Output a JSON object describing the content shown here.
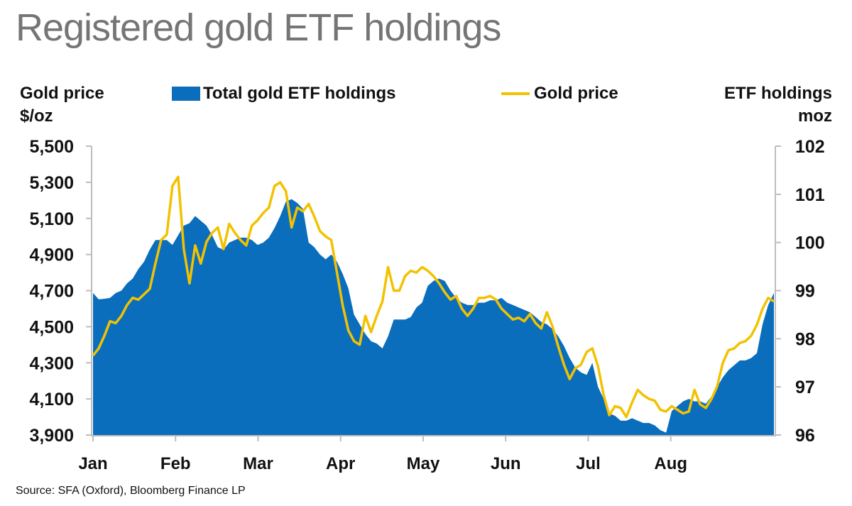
{
  "title": "Registered gold ETF holdings",
  "source": "Source: SFA (Oxford), Bloomberg Finance LP",
  "colors": {
    "holdings": "#0a6ebd",
    "price": "#f2c200",
    "axis": "#bdbdbd"
  },
  "chart_data": {
    "type": "area",
    "title": "Registered gold ETF holdings",
    "left_axis": {
      "label_line1": "Gold price",
      "label_line2": "$/oz",
      "range": [
        3900,
        5500
      ],
      "ticks": [
        "5,500",
        "5,300",
        "5,100",
        "4,900",
        "4,700",
        "4,500",
        "4,300",
        "4,100",
        "3,900"
      ]
    },
    "right_axis": {
      "label_line1": "ETF holdings",
      "label_line2": "moz",
      "range": [
        96,
        102
      ],
      "ticks": [
        "102",
        "101",
        "100",
        "99",
        "98",
        "97",
        "96"
      ]
    },
    "x_axis": {
      "ticks": [
        "Jan",
        "Feb",
        "Mar",
        "Apr",
        "May",
        "Jun",
        "Jul",
        "Aug"
      ]
    },
    "legend": {
      "holdings": "Total gold ETF holdings",
      "price": "Gold price",
      "placement": "top"
    },
    "series": [
      {
        "name": "Total gold ETF holdings",
        "type": "area",
        "axis": "right",
        "points": [
          [
            0,
            98.95
          ],
          [
            1,
            98.82
          ],
          [
            2,
            98.83
          ],
          [
            3,
            98.85
          ],
          [
            4,
            98.95
          ],
          [
            5,
            99.0
          ],
          [
            6,
            99.15
          ],
          [
            7,
            99.25
          ],
          [
            8,
            99.45
          ],
          [
            9,
            99.6
          ],
          [
            10,
            99.85
          ],
          [
            11,
            100.05
          ],
          [
            12,
            100.05
          ],
          [
            13,
            100.05
          ],
          [
            14,
            99.95
          ],
          [
            15,
            100.15
          ],
          [
            16,
            100.35
          ],
          [
            17,
            100.4
          ],
          [
            18,
            100.55
          ],
          [
            19,
            100.45
          ],
          [
            20,
            100.35
          ],
          [
            21,
            100.15
          ],
          [
            22,
            99.9
          ],
          [
            23,
            99.85
          ],
          [
            24,
            100.0
          ],
          [
            25,
            100.05
          ],
          [
            26,
            100.1
          ],
          [
            27,
            100.1
          ],
          [
            28,
            100.05
          ],
          [
            29,
            99.95
          ],
          [
            30,
            100.0
          ],
          [
            31,
            100.1
          ],
          [
            32,
            100.3
          ],
          [
            33,
            100.55
          ],
          [
            34,
            100.85
          ],
          [
            35,
            100.9
          ],
          [
            36,
            100.82
          ],
          [
            37,
            100.7
          ],
          [
            38,
            100.0
          ],
          [
            39,
            99.9
          ],
          [
            40,
            99.75
          ],
          [
            41,
            99.65
          ],
          [
            42,
            99.75
          ],
          [
            43,
            99.6
          ],
          [
            44,
            99.35
          ],
          [
            45,
            99.05
          ],
          [
            46,
            98.5
          ],
          [
            47,
            98.3
          ],
          [
            48,
            98.1
          ],
          [
            49,
            97.95
          ],
          [
            50,
            97.9
          ],
          [
            51,
            97.8
          ],
          [
            52,
            98.05
          ],
          [
            53,
            98.4
          ],
          [
            54,
            98.4
          ],
          [
            55,
            98.4
          ],
          [
            56,
            98.45
          ],
          [
            57,
            98.65
          ],
          [
            58,
            98.75
          ],
          [
            59,
            99.1
          ],
          [
            60,
            99.2
          ],
          [
            61,
            99.25
          ],
          [
            62,
            99.2
          ],
          [
            63,
            99.0
          ],
          [
            64,
            98.85
          ],
          [
            65,
            98.75
          ],
          [
            66,
            98.7
          ],
          [
            67,
            98.7
          ],
          [
            68,
            98.75
          ],
          [
            69,
            98.75
          ],
          [
            70,
            98.8
          ],
          [
            71,
            98.8
          ],
          [
            72,
            98.85
          ],
          [
            73,
            98.75
          ],
          [
            74,
            98.7
          ],
          [
            75,
            98.65
          ],
          [
            76,
            98.6
          ],
          [
            77,
            98.55
          ],
          [
            78,
            98.45
          ],
          [
            79,
            98.35
          ],
          [
            80,
            98.3
          ],
          [
            81,
            98.2
          ],
          [
            82,
            98.05
          ],
          [
            83,
            97.85
          ],
          [
            84,
            97.6
          ],
          [
            85,
            97.4
          ],
          [
            86,
            97.3
          ],
          [
            87,
            97.25
          ],
          [
            88,
            97.5
          ],
          [
            89,
            97.0
          ],
          [
            90,
            96.75
          ],
          [
            91,
            96.45
          ],
          [
            92,
            96.4
          ],
          [
            93,
            96.3
          ],
          [
            94,
            96.3
          ],
          [
            95,
            96.35
          ],
          [
            96,
            96.3
          ],
          [
            97,
            96.25
          ],
          [
            98,
            96.25
          ],
          [
            99,
            96.2
          ],
          [
            100,
            96.1
          ],
          [
            101,
            96.05
          ],
          [
            102,
            96.5
          ],
          [
            103,
            96.6
          ],
          [
            104,
            96.7
          ],
          [
            105,
            96.75
          ],
          [
            106,
            96.7
          ],
          [
            107,
            96.7
          ],
          [
            108,
            96.65
          ],
          [
            109,
            96.8
          ],
          [
            110,
            97.0
          ],
          [
            111,
            97.2
          ],
          [
            112,
            97.35
          ],
          [
            113,
            97.45
          ],
          [
            114,
            97.55
          ],
          [
            115,
            97.55
          ],
          [
            116,
            97.6
          ],
          [
            117,
            97.7
          ],
          [
            118,
            98.3
          ],
          [
            119,
            98.7
          ],
          [
            120,
            98.95
          ]
        ]
      },
      {
        "name": "Gold price",
        "type": "line",
        "axis": "left",
        "points": [
          [
            0,
            4340
          ],
          [
            1,
            4380
          ],
          [
            2,
            4450
          ],
          [
            3,
            4530
          ],
          [
            4,
            4520
          ],
          [
            5,
            4560
          ],
          [
            6,
            4620
          ],
          [
            7,
            4660
          ],
          [
            8,
            4650
          ],
          [
            9,
            4680
          ],
          [
            10,
            4710
          ],
          [
            11,
            4850
          ],
          [
            12,
            4980
          ],
          [
            13,
            5010
          ],
          [
            14,
            5280
          ],
          [
            15,
            5330
          ],
          [
            16,
            4930
          ],
          [
            17,
            4740
          ],
          [
            18,
            4950
          ],
          [
            19,
            4850
          ],
          [
            20,
            4970
          ],
          [
            21,
            5020
          ],
          [
            22,
            5050
          ],
          [
            23,
            4930
          ],
          [
            24,
            5070
          ],
          [
            25,
            5020
          ],
          [
            26,
            4980
          ],
          [
            27,
            4950
          ],
          [
            28,
            5060
          ],
          [
            29,
            5090
          ],
          [
            30,
            5130
          ],
          [
            31,
            5160
          ],
          [
            32,
            5280
          ],
          [
            33,
            5300
          ],
          [
            34,
            5250
          ],
          [
            35,
            5050
          ],
          [
            36,
            5160
          ],
          [
            37,
            5140
          ],
          [
            38,
            5180
          ],
          [
            39,
            5110
          ],
          [
            40,
            5030
          ],
          [
            41,
            5000
          ],
          [
            42,
            4980
          ],
          [
            43,
            4800
          ],
          [
            44,
            4620
          ],
          [
            45,
            4480
          ],
          [
            46,
            4420
          ],
          [
            47,
            4400
          ],
          [
            48,
            4560
          ],
          [
            49,
            4470
          ],
          [
            50,
            4560
          ],
          [
            51,
            4640
          ],
          [
            52,
            4830
          ],
          [
            53,
            4700
          ],
          [
            54,
            4700
          ],
          [
            55,
            4780
          ],
          [
            56,
            4810
          ],
          [
            57,
            4800
          ],
          [
            58,
            4830
          ],
          [
            59,
            4810
          ],
          [
            60,
            4780
          ],
          [
            61,
            4740
          ],
          [
            62,
            4690
          ],
          [
            63,
            4650
          ],
          [
            64,
            4670
          ],
          [
            65,
            4600
          ],
          [
            66,
            4560
          ],
          [
            67,
            4600
          ],
          [
            68,
            4660
          ],
          [
            69,
            4660
          ],
          [
            70,
            4670
          ],
          [
            71,
            4650
          ],
          [
            72,
            4600
          ],
          [
            73,
            4570
          ],
          [
            74,
            4540
          ],
          [
            75,
            4550
          ],
          [
            76,
            4530
          ],
          [
            77,
            4570
          ],
          [
            78,
            4520
          ],
          [
            79,
            4490
          ],
          [
            80,
            4580
          ],
          [
            81,
            4500
          ],
          [
            82,
            4390
          ],
          [
            83,
            4290
          ],
          [
            84,
            4210
          ],
          [
            85,
            4270
          ],
          [
            86,
            4290
          ],
          [
            87,
            4360
          ],
          [
            88,
            4380
          ],
          [
            89,
            4280
          ],
          [
            90,
            4120
          ],
          [
            91,
            4010
          ],
          [
            92,
            4060
          ],
          [
            93,
            4050
          ],
          [
            94,
            4000
          ],
          [
            95,
            4080
          ],
          [
            96,
            4150
          ],
          [
            97,
            4120
          ],
          [
            98,
            4100
          ],
          [
            99,
            4090
          ],
          [
            100,
            4040
          ],
          [
            101,
            4030
          ],
          [
            102,
            4060
          ],
          [
            103,
            4040
          ],
          [
            104,
            4020
          ],
          [
            105,
            4030
          ],
          [
            106,
            4150
          ],
          [
            107,
            4070
          ],
          [
            108,
            4050
          ],
          [
            109,
            4100
          ],
          [
            110,
            4170
          ],
          [
            111,
            4300
          ],
          [
            112,
            4370
          ],
          [
            113,
            4380
          ],
          [
            114,
            4410
          ],
          [
            115,
            4420
          ],
          [
            116,
            4450
          ],
          [
            117,
            4510
          ],
          [
            118,
            4600
          ],
          [
            119,
            4660
          ],
          [
            120,
            4640
          ]
        ]
      }
    ]
  }
}
